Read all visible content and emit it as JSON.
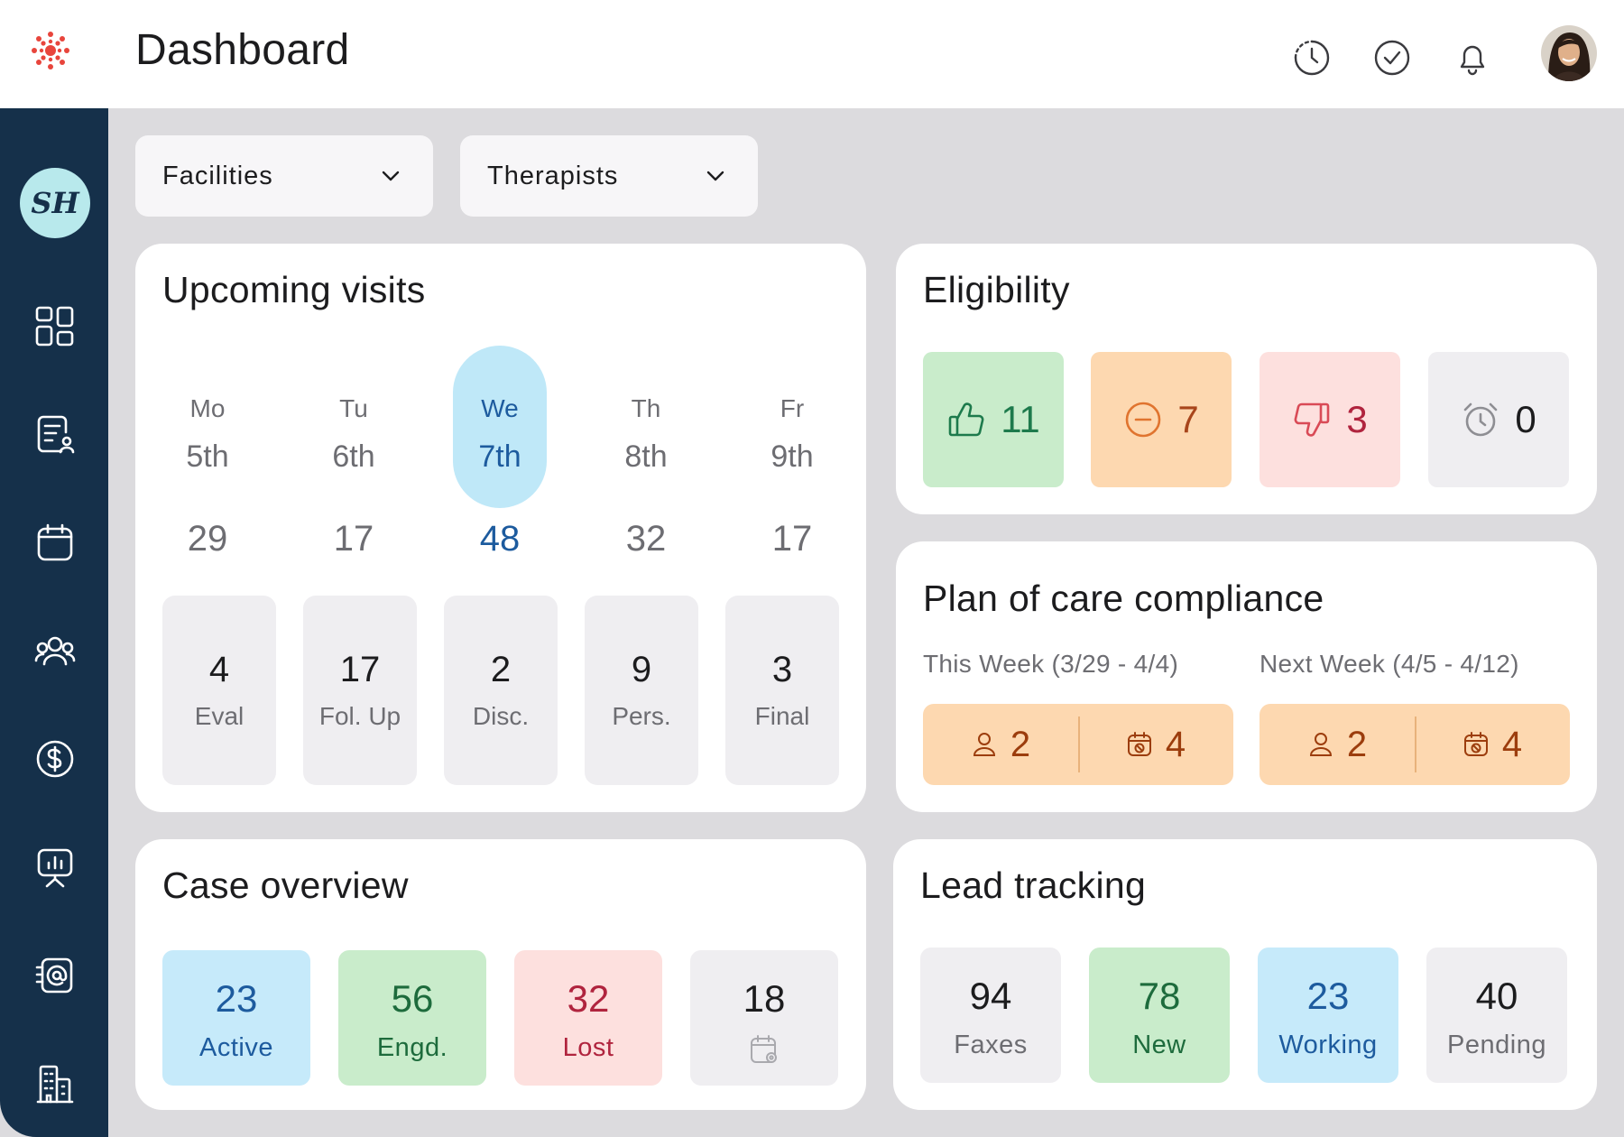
{
  "app": {
    "title": "Dashboard",
    "user_initials": "SH"
  },
  "header_icons": [
    "history-icon",
    "check-circle-icon",
    "bell-icon",
    "user-avatar"
  ],
  "sidebar_icons": [
    "dashboard-grid-icon",
    "document-user-icon",
    "calendar-icon",
    "users-group-icon",
    "dollar-icon",
    "presentation-chart-icon",
    "fax-at-icon",
    "building-icon"
  ],
  "filters": {
    "facilities": "Facilities",
    "therapists": "Therapists"
  },
  "upcoming_visits": {
    "title": "Upcoming visits",
    "days": [
      {
        "name": "Mo",
        "date": "5th",
        "count": "29"
      },
      {
        "name": "Tu",
        "date": "6th",
        "count": "17"
      },
      {
        "name": "We",
        "date": "7th",
        "count": "48",
        "selected": true
      },
      {
        "name": "Th",
        "date": "8th",
        "count": "32"
      },
      {
        "name": "Fr",
        "date": "9th",
        "count": "17"
      }
    ],
    "types": [
      {
        "value": "4",
        "label": "Eval"
      },
      {
        "value": "17",
        "label": "Fol. Up"
      },
      {
        "value": "2",
        "label": "Disc."
      },
      {
        "value": "9",
        "label": "Pers."
      },
      {
        "value": "3",
        "label": "Final"
      }
    ]
  },
  "eligibility": {
    "title": "Eligibility",
    "items": [
      {
        "icon": "thumbs-up-icon",
        "value": "11",
        "color": "#1d7a4c",
        "bg": "#c9eccb"
      },
      {
        "icon": "minus-circle-icon",
        "value": "7",
        "color": "#a8451b",
        "bg": "#fdd8b0"
      },
      {
        "icon": "thumbs-down-icon",
        "value": "3",
        "color": "#b0243e",
        "bg": "#fde0de"
      },
      {
        "icon": "alarm-clock-icon",
        "value": "0",
        "color": "#1c1c1e",
        "bg": "#efeef1"
      }
    ]
  },
  "plan_of_care": {
    "title": "Plan of care compliance",
    "this_week": {
      "label": "This Week (3/29 - 4/4)",
      "people": "2",
      "scheduled": "4"
    },
    "next_week": {
      "label": "Next Week (4/5 - 4/12)",
      "people": "2",
      "scheduled": "4"
    }
  },
  "case_overview": {
    "title": "Case overview",
    "items": [
      {
        "value": "23",
        "label": "Active",
        "color": "#1d5b9e",
        "bg": "#c6eafa"
      },
      {
        "value": "56",
        "label": "Engd.",
        "color": "#1d6b3c",
        "bg": "#c9eccb"
      },
      {
        "value": "32",
        "label": "Lost",
        "color": "#b0243e",
        "bg": "#fde0de"
      },
      {
        "value": "18",
        "label": "",
        "icon": "calendar-settings-icon",
        "color": "#1c1c1e",
        "bg": "#efeef1"
      }
    ]
  },
  "lead_tracking": {
    "title": "Lead tracking",
    "items": [
      {
        "value": "94",
        "label": "Faxes",
        "color": "#1c1c1e",
        "label_color": "#6d6d72",
        "bg": "#efeef1"
      },
      {
        "value": "78",
        "label": "New",
        "color": "#1d6b3c",
        "label_color": "#1d6b3c",
        "bg": "#c9eccb"
      },
      {
        "value": "23",
        "label": "Working",
        "color": "#1d5b9e",
        "label_color": "#1d5b9e",
        "bg": "#c6eafa"
      },
      {
        "value": "40",
        "label": "Pending",
        "color": "#1c1c1e",
        "label_color": "#6d6d72",
        "bg": "#efeef1"
      }
    ]
  }
}
